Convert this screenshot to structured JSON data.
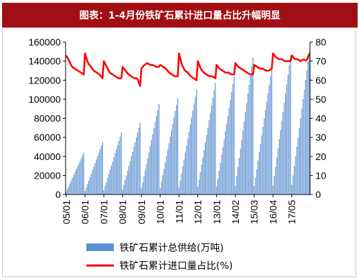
{
  "title": "图表：1-4月份铁矿石累计进口量占比升幅明显",
  "chart_data": {
    "type": "bar+line",
    "x_tick_labels": [
      "05/01",
      "06/01",
      "07/01",
      "08/01",
      "09/01",
      "10/01",
      "11/01",
      "12/01",
      "13/01",
      "14/02",
      "15/03",
      "16/04",
      "17/05"
    ],
    "left_axis": {
      "ylim": [
        0,
        160000
      ],
      "ticks": [
        "0",
        "20000",
        "40000",
        "60000",
        "80000",
        "100000",
        "120000",
        "140000",
        "160000"
      ]
    },
    "right_axis": {
      "ylim": [
        0,
        80
      ],
      "ticks": [
        "0",
        "10",
        "20",
        "30",
        "40",
        "50",
        "60",
        "70",
        "80"
      ]
    },
    "series": [
      {
        "name": "铁矿石累计总供给(万吨)",
        "type": "bar",
        "color": "#5b8fd1",
        "axis": "left",
        "annual_peaks": [
          44000,
          55000,
          65000,
          75000,
          95000,
          101000,
          110000,
          117000,
          124000,
          144000,
          133000,
          145000,
          150000
        ]
      },
      {
        "name": "铁矿石累计进口量占比(%)",
        "type": "line",
        "color": "#ff0000",
        "axis": "right",
        "annual_profile": [
          [
            73,
            70,
            67,
            66,
            65,
            64,
            63
          ],
          [
            74,
            69,
            67,
            65,
            64,
            63,
            61
          ],
          [
            70,
            67,
            64,
            63,
            62,
            61,
            61
          ],
          [
            67,
            65,
            63,
            62,
            61,
            61,
            57
          ],
          [
            66,
            68,
            69,
            68,
            68,
            67,
            67
          ],
          [
            68,
            67,
            66,
            64,
            63,
            62,
            62
          ],
          [
            74,
            68,
            65,
            64,
            62,
            61,
            60
          ],
          [
            70,
            66,
            64,
            63,
            62,
            62,
            61
          ],
          [
            68,
            66,
            65,
            64,
            64,
            63,
            63
          ],
          [
            69,
            67,
            66,
            65,
            64,
            63,
            63
          ],
          [
            68,
            67,
            66,
            66,
            65,
            65,
            66
          ],
          [
            74,
            72,
            71,
            71,
            70,
            70,
            70
          ],
          [
            73,
            71,
            71,
            70,
            71,
            70,
            74
          ]
        ]
      }
    ],
    "legend_position": "bottom",
    "grid": false
  }
}
